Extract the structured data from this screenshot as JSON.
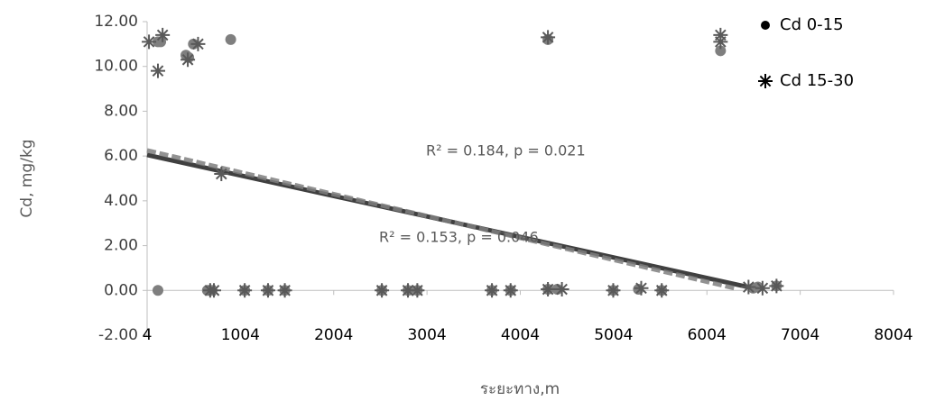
{
  "chart_data": {
    "type": "scatter",
    "x_label": "ระยะทาง,m",
    "y_label": "Cd, mg/kg",
    "xlim": [
      4,
      8004
    ],
    "xticks": [
      4,
      1004,
      2004,
      3004,
      4004,
      5004,
      6004,
      7004,
      8004
    ],
    "ylim": [
      -2,
      12
    ],
    "yticks": [
      {
        "value": -2,
        "label": "-2.00"
      },
      {
        "value": 0,
        "label": "0.00"
      },
      {
        "value": 2,
        "label": "2.00"
      },
      {
        "value": 4,
        "label": "4.00"
      },
      {
        "value": 6,
        "label": "6.00"
      },
      {
        "value": 8,
        "label": "8.00"
      },
      {
        "value": 10,
        "label": "10.00"
      },
      {
        "value": 12,
        "label": "12.00"
      }
    ],
    "annotations": [
      "R² = 0.184, p = 0.021",
      "R² = 0.153, p = 0.046"
    ],
    "series": [
      {
        "name": "Cd 0-15",
        "marker": "circle",
        "color": "#7f7f7f",
        "x": [
          120,
          120,
          150,
          420,
          500,
          450,
          900,
          4300,
          6150,
          650,
          700,
          1050,
          1300,
          1480,
          2520,
          2800,
          2900,
          3700,
          3900,
          4300,
          4400,
          5000,
          5270,
          5520,
          6500,
          6550,
          6750
        ],
        "values": [
          0,
          11.1,
          11.1,
          10.5,
          11.0,
          10.4,
          11.2,
          11.2,
          10.7,
          0,
          0,
          0,
          0,
          0,
          0,
          0,
          0,
          0,
          0,
          0.05,
          0.05,
          0,
          0.05,
          0,
          0.1,
          0.15,
          0.2
        ],
        "trend": {
          "x": [
            4,
            6500
          ],
          "y": [
            6.05,
            0.1
          ],
          "dash": false
        }
      },
      {
        "name": "Cd 15-30",
        "marker": "asterisk",
        "color": "#595959",
        "x": [
          24,
          170,
          120,
          440,
          550,
          800,
          4300,
          6150,
          6150,
          680,
          720,
          1050,
          1300,
          1480,
          2520,
          2800,
          2900,
          3700,
          3900,
          4300,
          4450,
          5000,
          5300,
          5520,
          6450,
          6600,
          6750
        ],
        "values": [
          11.1,
          11.4,
          9.8,
          10.3,
          11.0,
          5.2,
          11.3,
          11.4,
          11.1,
          0,
          0,
          0,
          0,
          0,
          0,
          0,
          0,
          0,
          0,
          0.05,
          0.05,
          0,
          0.1,
          0,
          0.15,
          0.1,
          0.2
        ],
        "trend": {
          "x": [
            4,
            6300
          ],
          "y": [
            6.25,
            0.1
          ],
          "dash": true
        }
      }
    ]
  }
}
